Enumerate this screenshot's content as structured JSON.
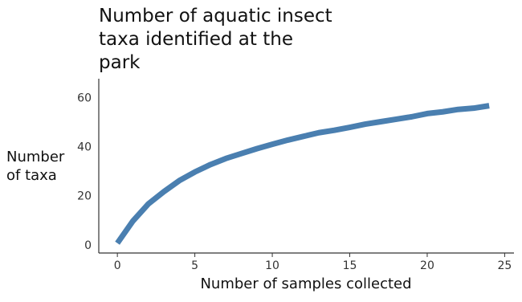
{
  "chart_data": {
    "type": "line",
    "title": "Number of aquatic insect taxa identified at the park",
    "x_label": "Number of samples collected",
    "y_label": "Number of taxa",
    "x": [
      0,
      1,
      2,
      3,
      4,
      5,
      6,
      7,
      8,
      9,
      10,
      11,
      12,
      13,
      14,
      15,
      16,
      17,
      18,
      19,
      20,
      21,
      22,
      23,
      24
    ],
    "series": [
      {
        "color": "#4a7fb0",
        "values": [
          1,
          10,
          17,
          22,
          26.5,
          30,
          33,
          35.5,
          37.5,
          39.5,
          41.3,
          43,
          44.5,
          46,
          47,
          48.2,
          49.5,
          50.5,
          51.5,
          52.5,
          53.8,
          54.5,
          55.5,
          56,
          57
        ]
      }
    ],
    "xlim": [
      -1.2,
      25.6
    ],
    "xticks": [
      0,
      5,
      10,
      15,
      20,
      25
    ],
    "ylim": [
      -3,
      68
    ],
    "yticks": [
      0,
      20,
      40,
      60
    ]
  }
}
